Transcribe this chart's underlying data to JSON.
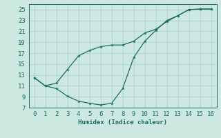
{
  "xlabel": "Humidex (Indice chaleur)",
  "bg_color": "#cce8e0",
  "grid_color": "#aad4cc",
  "line_color": "#1a6e60",
  "xlim": [
    -0.5,
    16.5
  ],
  "ylim": [
    7,
    26
  ],
  "xticks": [
    0,
    1,
    2,
    3,
    4,
    5,
    6,
    7,
    8,
    9,
    10,
    11,
    12,
    13,
    14,
    15,
    16
  ],
  "yticks": [
    7,
    9,
    11,
    13,
    15,
    17,
    19,
    21,
    23,
    25
  ],
  "line1_x": [
    0,
    1,
    2,
    3,
    4,
    5,
    6,
    7,
    8,
    9,
    10,
    11,
    12,
    13,
    14,
    15,
    16
  ],
  "line1_y": [
    12.5,
    11.0,
    10.5,
    9.1,
    8.2,
    7.8,
    7.5,
    7.8,
    10.5,
    16.2,
    19.2,
    21.2,
    23.0,
    23.9,
    25.0,
    25.1,
    25.1
  ],
  "line2_x": [
    0,
    1,
    2,
    3,
    4,
    5,
    6,
    7,
    8,
    9,
    10,
    11,
    12,
    13,
    14,
    15,
    16
  ],
  "line2_y": [
    12.5,
    11.0,
    11.5,
    14.0,
    16.5,
    17.5,
    18.2,
    18.5,
    18.5,
    19.2,
    20.7,
    21.4,
    22.8,
    23.9,
    25.0,
    25.1,
    25.1
  ],
  "font_size": 6.5,
  "tick_font_size": 6.5,
  "linewidth": 0.9,
  "markersize": 3.5
}
